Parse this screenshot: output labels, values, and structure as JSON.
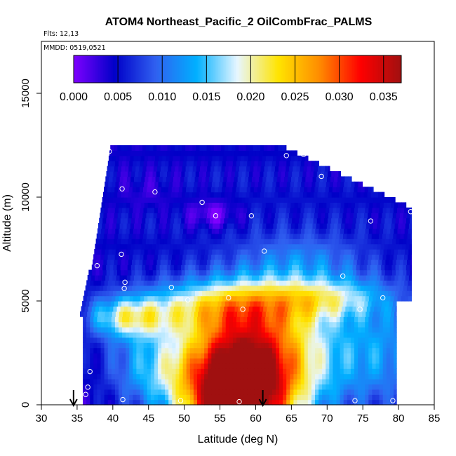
{
  "chart_data": {
    "type": "heatmap",
    "title": "ATOM4 Northeast_Pacific_2 OilCombFrac_PALMS",
    "info_lines": [
      "Flts: 12,13",
      "MMDD: 0519,0521"
    ],
    "xlabel": "Latitude (deg N)",
    "ylabel": "Altitude (m)",
    "xlim": [
      30,
      85
    ],
    "ylim": [
      0,
      17500
    ],
    "x_ticks": [
      30,
      35,
      40,
      45,
      50,
      55,
      60,
      65,
      70,
      75,
      80,
      85
    ],
    "y_ticks": [
      0,
      5000,
      10000,
      15000
    ],
    "colorbar": {
      "range": [
        0,
        0.037
      ],
      "ticks": [
        "0.000",
        "0.005",
        "0.010",
        "0.015",
        "0.020",
        "0.025",
        "0.030",
        "0.035"
      ],
      "colors": [
        "#7f00ff",
        "#0000c8",
        "#3060f0",
        "#00b0ff",
        "#e8f6ff",
        "#ffe400",
        "#ff8c00",
        "#ff0000",
        "#a01010"
      ]
    },
    "sample_points": [
      {
        "lat": 39.5,
        "alt": 12200
      },
      {
        "lat": 64.3,
        "alt": 12000
      },
      {
        "lat": 66.7,
        "alt": 12050
      },
      {
        "lat": 69.2,
        "alt": 11000
      },
      {
        "lat": 41.3,
        "alt": 10400
      },
      {
        "lat": 45.9,
        "alt": 10250
      },
      {
        "lat": 52.5,
        "alt": 9750
      },
      {
        "lat": 54.4,
        "alt": 9100
      },
      {
        "lat": 59.4,
        "alt": 9100
      },
      {
        "lat": 76.1,
        "alt": 8850
      },
      {
        "lat": 81.7,
        "alt": 9300
      },
      {
        "lat": 61.2,
        "alt": 7400
      },
      {
        "lat": 41.2,
        "alt": 7250
      },
      {
        "lat": 37.8,
        "alt": 6700
      },
      {
        "lat": 72.2,
        "alt": 6200
      },
      {
        "lat": 41.7,
        "alt": 5900
      },
      {
        "lat": 48.2,
        "alt": 5650
      },
      {
        "lat": 41.6,
        "alt": 5600
      },
      {
        "lat": 77.8,
        "alt": 5150
      },
      {
        "lat": 50.5,
        "alt": 5050
      },
      {
        "lat": 56.2,
        "alt": 5150
      },
      {
        "lat": 58.2,
        "alt": 4600
      },
      {
        "lat": 74.6,
        "alt": 4600
      },
      {
        "lat": 80.2,
        "alt": 4400
      },
      {
        "lat": 35.3,
        "alt": 4100
      },
      {
        "lat": 36.8,
        "alt": 1600
      },
      {
        "lat": 36.5,
        "alt": 850
      },
      {
        "lat": 36.2,
        "alt": 500
      },
      {
        "lat": 41.4,
        "alt": 250
      },
      {
        "lat": 49.5,
        "alt": 200
      },
      {
        "lat": 57.7,
        "alt": 150
      },
      {
        "lat": 73.9,
        "alt": 200
      },
      {
        "lat": 79.2,
        "alt": 200
      }
    ],
    "markers": [
      {
        "lat": 34.5
      },
      {
        "lat": 61.0
      }
    ]
  }
}
